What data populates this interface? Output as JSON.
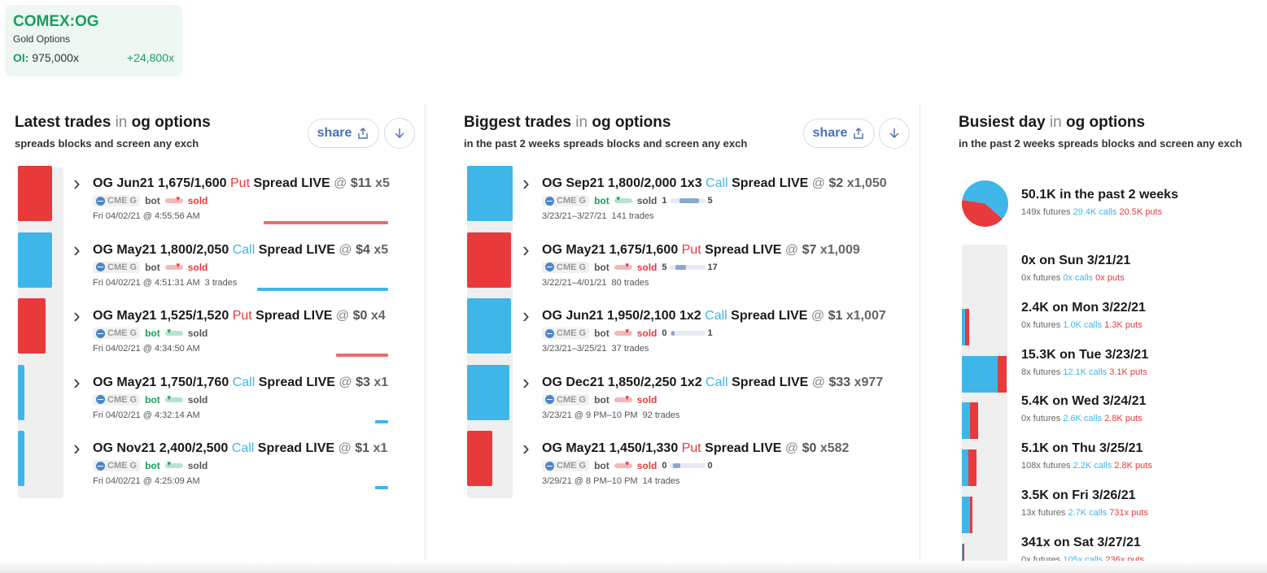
{
  "ticker": {
    "symbol": "COMEX:OG",
    "description": "Gold Options",
    "oi_label": "OI:",
    "oi_value": "975,000x",
    "change": "+24,800x"
  },
  "colors": {
    "call": "#3fb6e8",
    "put": "#e8393b",
    "green": "#1b9e5b"
  },
  "latest": {
    "title": "Latest trades",
    "in": "in",
    "subject": "og options",
    "subtitle": "spreads blocks and screen any exch",
    "share_label": "share",
    "trades": [
      {
        "name": "OG Jun21 1,675/1,600",
        "kind": "Put",
        "tail": "Spread LIVE",
        "at": "@",
        "price": "$11",
        "qty": "x5",
        "exch": "CME G",
        "bot": "bot",
        "sold": "sold",
        "side": "sold",
        "time": "Fri 04/02/21 @ 4:55:56 AM",
        "count": "",
        "color": "put",
        "vol": 0.75,
        "agg": 0.95
      },
      {
        "name": "OG May21 1,800/2,050",
        "kind": "Call",
        "tail": "Spread LIVE",
        "at": "@",
        "price": "$4",
        "qty": "x5",
        "exch": "CME G",
        "bot": "bot",
        "sold": "sold",
        "side": "sold",
        "time": "Fri 04/02/21 @ 4:51:31 AM",
        "count": "3 trades",
        "color": "call",
        "vol": 0.75,
        "agg": 1.0
      },
      {
        "name": "OG May21 1,525/1,520",
        "kind": "Put",
        "tail": "Spread LIVE",
        "at": "@",
        "price": "$0",
        "qty": "x4",
        "exch": "CME G",
        "bot": "bot",
        "sold": "sold",
        "side": "bot",
        "time": "Fri 04/02/21 @ 4:34:50 AM",
        "count": "",
        "color": "put",
        "vol": 0.6,
        "agg": 0.4
      },
      {
        "name": "OG May21 1,750/1,760",
        "kind": "Call",
        "tail": "Spread LIVE",
        "at": "@",
        "price": "$3",
        "qty": "x1",
        "exch": "CME G",
        "bot": "bot",
        "sold": "sold",
        "side": "bot",
        "time": "Fri 04/02/21 @ 4:32:14 AM",
        "count": "",
        "color": "call",
        "vol": 0.15,
        "agg": 0.1
      },
      {
        "name": "OG Nov21 2,400/2,500",
        "kind": "Call",
        "tail": "Spread LIVE",
        "at": "@",
        "price": "$1",
        "qty": "x1",
        "exch": "CME G",
        "bot": "bot",
        "sold": "sold",
        "side": "bot",
        "time": "Fri 04/02/21 @ 4:25:09 AM",
        "count": "",
        "color": "call",
        "vol": 0.15,
        "agg": 0.1
      }
    ]
  },
  "biggest": {
    "title": "Biggest trades",
    "in": "in",
    "subject": "og options",
    "subtitle": "in the past 2 weeks spreads blocks and screen any exch",
    "share_label": "share",
    "trades": [
      {
        "name": "OG Sep21 1,800/2,000 1x3",
        "kind": "Call",
        "tail": "Spread LIVE",
        "at": "@",
        "price": "$2",
        "qty": "x1,050",
        "exch": "CME G",
        "bot": "bot",
        "sold": "sold",
        "side": "bot",
        "lo": "1",
        "hi": "5",
        "fill": 0.55,
        "time": "3/23/21–3/27/21",
        "count": "141 trades",
        "color": "call",
        "vol": 1.0
      },
      {
        "name": "OG May21 1,675/1,600",
        "kind": "Put",
        "tail": "Spread LIVE",
        "at": "@",
        "price": "$7",
        "qty": "x1,009",
        "exch": "CME G",
        "bot": "bot",
        "sold": "sold",
        "side": "sold",
        "lo": "5",
        "hi": "17",
        "fill": 0.3,
        "time": "3/22/21–4/01/21",
        "count": "80 trades",
        "color": "put",
        "vol": 0.96
      },
      {
        "name": "OG Jun21 1,950/2,100 1x2",
        "kind": "Call",
        "tail": "Spread LIVE",
        "at": "@",
        "price": "$1",
        "qty": "x1,007",
        "exch": "CME G",
        "bot": "bot",
        "sold": "sold",
        "side": "sold",
        "lo": "0",
        "hi": "1",
        "fill": 0.1,
        "time": "3/23/21–3/25/21",
        "count": "37 trades",
        "color": "call",
        "vol": 0.96
      },
      {
        "name": "OG Dec21 1,850/2,250 1x2",
        "kind": "Call",
        "tail": "Spread LIVE",
        "at": "@",
        "price": "$33",
        "qty": "x977",
        "exch": "CME G",
        "bot": "bot",
        "sold": "sold",
        "side": "sold",
        "lo": "",
        "hi": "",
        "fill": 0,
        "time": "3/23/21 @ 9 PM–10 PM",
        "count": "92 trades",
        "color": "call",
        "vol": 0.93
      },
      {
        "name": "OG May21 1,450/1,330",
        "kind": "Put",
        "tail": "Spread LIVE",
        "at": "@",
        "price": "$0",
        "qty": "x582",
        "exch": "CME G",
        "bot": "bot",
        "sold": "sold",
        "side": "sold",
        "lo": "0",
        "hi": "0",
        "fill": 0.2,
        "time": "3/29/21 @ 8 PM–10 PM",
        "count": "14 trades",
        "color": "put",
        "vol": 0.55
      }
    ]
  },
  "busiest": {
    "title": "Busiest day",
    "in": "in",
    "subject": "og options",
    "subtitle": "in the past 2 weeks spreads blocks and screen any exch",
    "summary": {
      "title": "50.1K in the past 2 weeks",
      "futures": "149x futures",
      "calls": "29.4K calls",
      "puts": "20.5K puts",
      "call_share": 0.59
    },
    "days": [
      {
        "title": "0x on Sun 3/21/21",
        "futures": "0x futures",
        "calls": "0x calls",
        "puts": "0x puts",
        "call_frac": 0,
        "put_frac": 0
      },
      {
        "title": "2.4K on Mon 3/22/21",
        "futures": "0x futures",
        "calls": "1.0K calls",
        "puts": "1.3K puts",
        "call_frac": 0.065,
        "put_frac": 0.085
      },
      {
        "title": "15.3K on Tue 3/23/21",
        "futures": "8x futures",
        "calls": "12.1K calls",
        "puts": "3.1K puts",
        "call_frac": 0.79,
        "put_frac": 0.2
      },
      {
        "title": "5.4K on Wed 3/24/21",
        "futures": "0x futures",
        "calls": "2.6K calls",
        "puts": "2.8K puts",
        "call_frac": 0.17,
        "put_frac": 0.18
      },
      {
        "title": "5.1K on Thu 3/25/21",
        "futures": "108x futures",
        "calls": "2.2K calls",
        "puts": "2.8K puts",
        "call_frac": 0.15,
        "put_frac": 0.18
      },
      {
        "title": "3.5K on Fri 3/26/21",
        "futures": "13x futures",
        "calls": "2.7K calls",
        "puts": "731x puts",
        "call_frac": 0.18,
        "put_frac": 0.05
      },
      {
        "title": "341x on Sat 3/27/21",
        "futures": "0x futures",
        "calls": "105x calls",
        "puts": "236x puts",
        "call_frac": 0.01,
        "put_frac": 0.015
      }
    ]
  }
}
